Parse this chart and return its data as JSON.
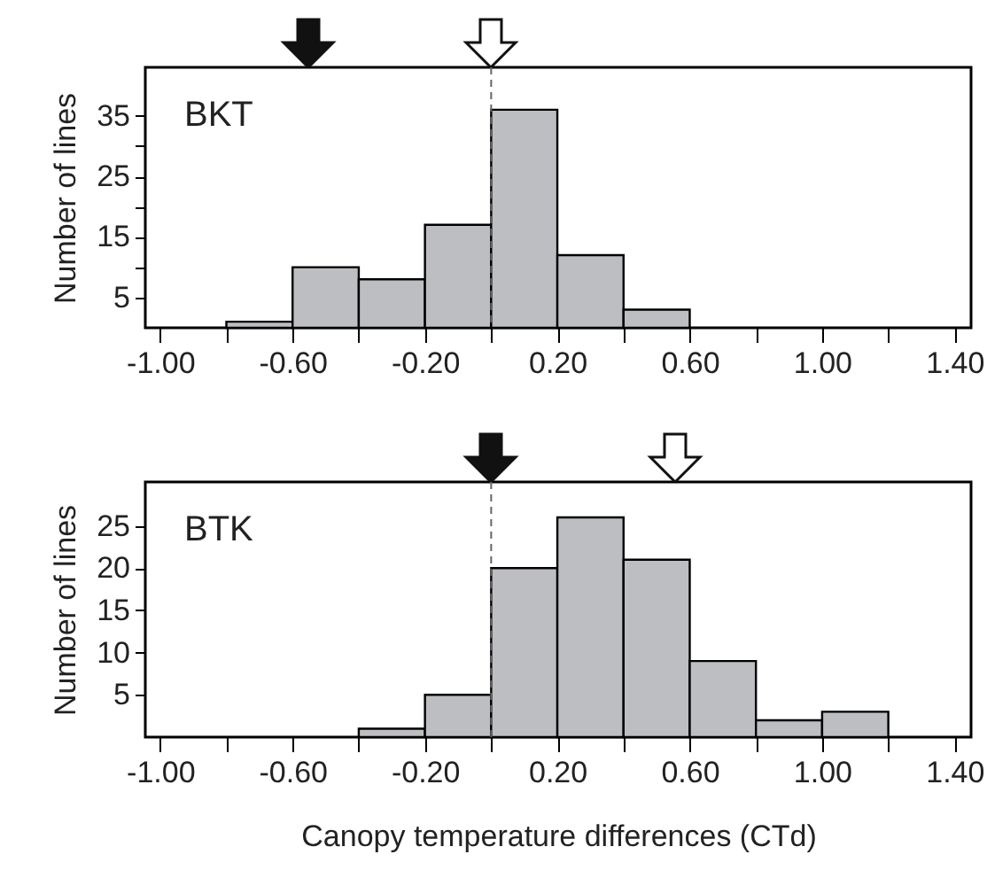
{
  "chart_data": [
    {
      "type": "histogram",
      "title": "BKT",
      "ylabel": "Number of lines",
      "bins": [
        -0.8,
        -0.6,
        -0.4,
        -0.2,
        0,
        0.2,
        0.4,
        0.6
      ],
      "values": [
        1,
        10,
        8,
        17,
        36,
        12,
        3
      ],
      "color": "#bdbec2",
      "xlim": [
        -1.045,
        1.45
      ],
      "xticks": [
        {
          "value": -1,
          "label": "-1.00"
        },
        {
          "value": -0.8,
          "label": null
        },
        {
          "value": -0.6,
          "label": "-0.60"
        },
        {
          "value": -0.4,
          "label": null
        },
        {
          "value": -0.2,
          "label": "-0.20"
        },
        {
          "value": 0,
          "label": null
        },
        {
          "value": 0.2,
          "label": "0.20"
        },
        {
          "value": 0.4,
          "label": null
        },
        {
          "value": 0.6,
          "label": "0.60"
        },
        {
          "value": 0.8,
          "label": null
        },
        {
          "value": 1,
          "label": "1.00"
        },
        {
          "value": 1.2,
          "label": null
        },
        {
          "value": 1.4,
          "label": "1.40"
        }
      ],
      "ylim": [
        0,
        43
      ],
      "yticks": [
        5,
        {
          "value": 10,
          "label": null
        },
        15,
        {
          "value": 20,
          "label": null
        },
        25,
        {
          "value": 30,
          "label": null
        },
        35
      ],
      "ref_lines": [
        {
          "axis": "x",
          "value": 0,
          "line_style": "dashed",
          "color": "#666666"
        }
      ]
    },
    {
      "type": "histogram",
      "title": "BTK",
      "xlabel": "Canopy temperature differences (CTd)",
      "ylabel": "Number of lines",
      "bins": [
        -0.4,
        -0.2,
        0,
        0.2,
        0.4,
        0.6,
        0.8,
        1,
        1.2
      ],
      "values": [
        1,
        5,
        20,
        26,
        21,
        9,
        2,
        3
      ],
      "color": "#bdbec2",
      "xlim": [
        -1.045,
        1.45
      ],
      "xticks": [
        {
          "value": -1,
          "label": "-1.00"
        },
        {
          "value": -0.8,
          "label": null
        },
        {
          "value": -0.6,
          "label": "-0.60"
        },
        {
          "value": -0.4,
          "label": null
        },
        {
          "value": -0.2,
          "label": "-0.20"
        },
        {
          "value": 0,
          "label": null
        },
        {
          "value": 0.2,
          "label": "0.20"
        },
        {
          "value": 0.4,
          "label": null
        },
        {
          "value": 0.6,
          "label": "0.60"
        },
        {
          "value": 0.8,
          "label": null
        },
        {
          "value": 1,
          "label": "1.00"
        },
        {
          "value": 1.2,
          "label": null
        },
        {
          "value": 1.4,
          "label": "1.40"
        }
      ],
      "ylim": [
        0,
        30.2
      ],
      "yticks": [
        5,
        10,
        15,
        20,
        25
      ],
      "ref_lines": [
        {
          "axis": "x",
          "value": 0,
          "line_style": "dashed",
          "color": "#666666"
        }
      ]
    }
  ]
}
